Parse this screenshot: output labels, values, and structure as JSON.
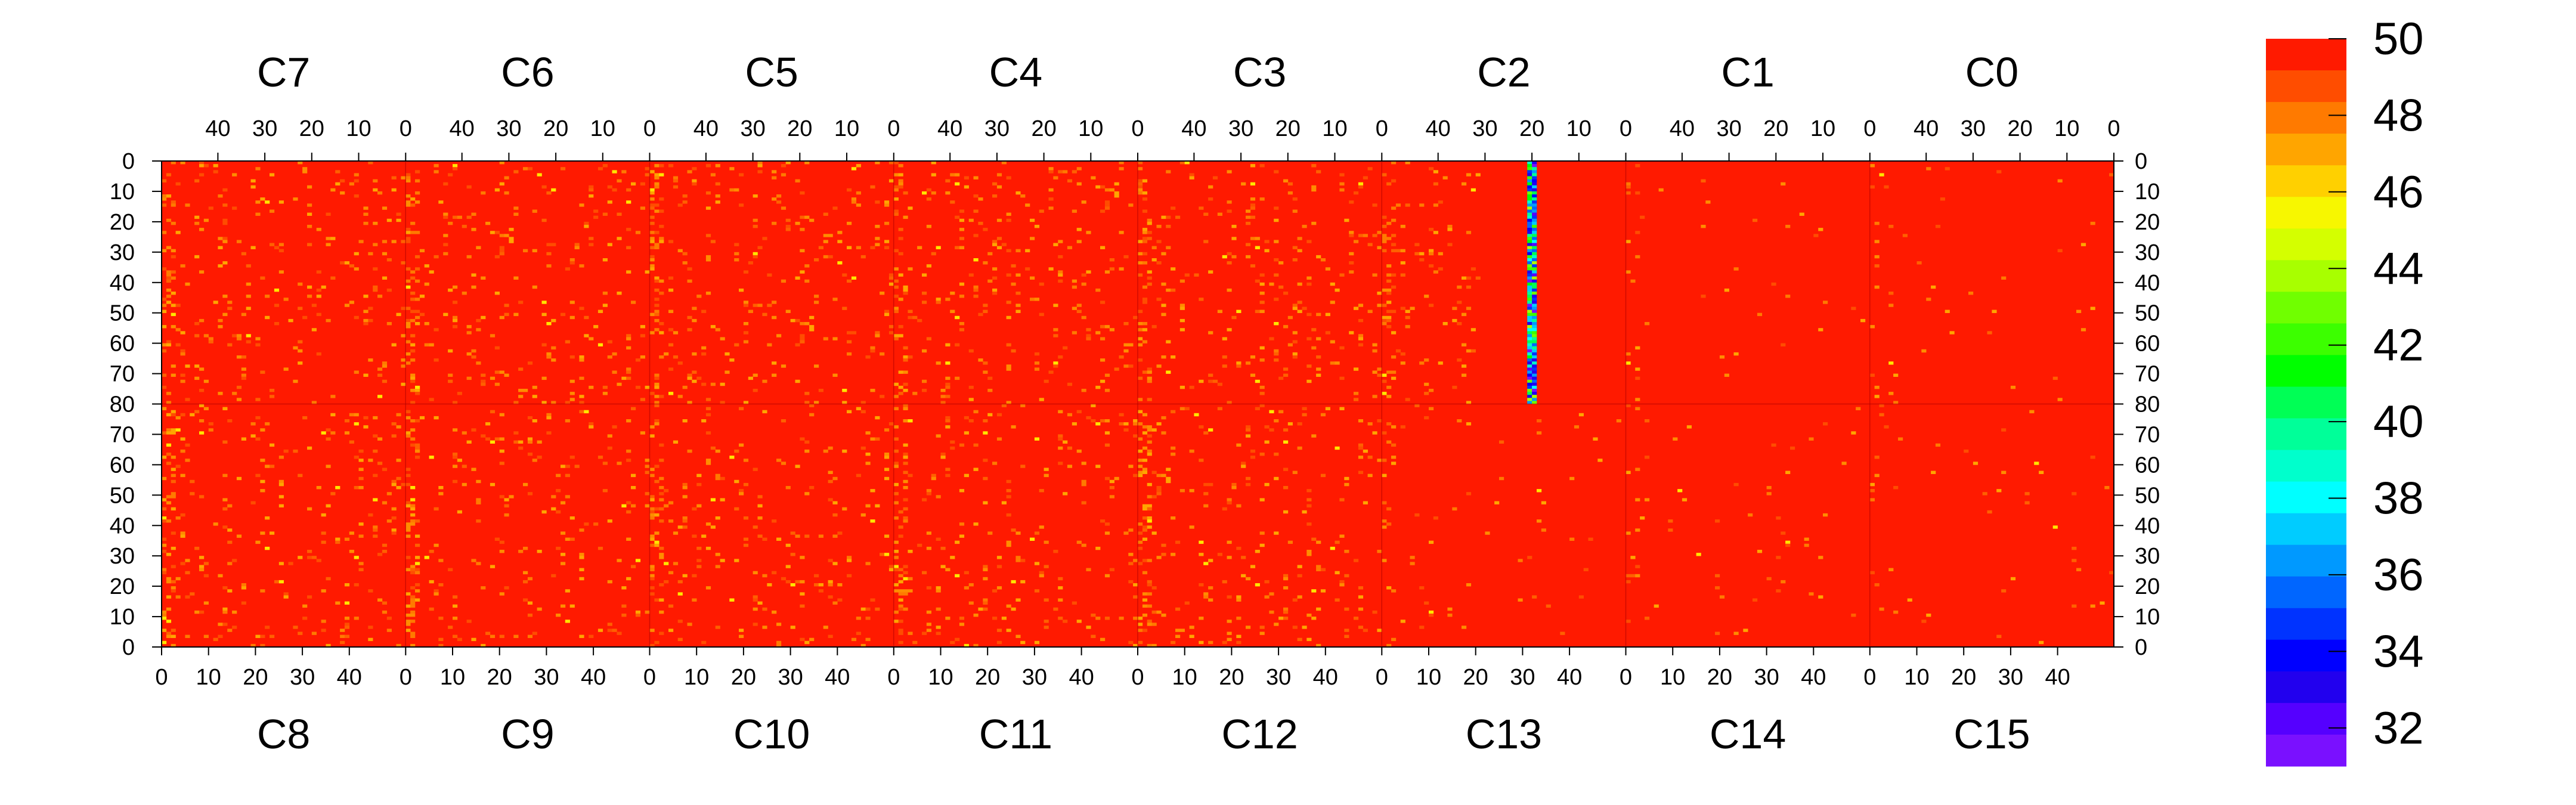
{
  "chart_data": {
    "type": "heatmap",
    "title": "",
    "top_chips": [
      "C7",
      "C6",
      "C5",
      "C4",
      "C3",
      "C2",
      "C1",
      "C0"
    ],
    "bottom_chips": [
      "C8",
      "C9",
      "C10",
      "C11",
      "C12",
      "C13",
      "C14",
      "C15"
    ],
    "chip_columns": 52,
    "rows_per_half": 80,
    "top_axis_ticks": [
      "40",
      "30",
      "20",
      "10",
      "0"
    ],
    "top_axis_tick_values": [
      40,
      30,
      20,
      10,
      0
    ],
    "bottom_axis_ticks": [
      "0",
      "10",
      "20",
      "30",
      "40"
    ],
    "bottom_axis_tick_values": [
      0,
      10,
      20,
      30,
      40
    ],
    "upper_row_ticks": [
      "0",
      "10",
      "20",
      "30",
      "40",
      "50",
      "60",
      "70",
      "80"
    ],
    "upper_row_tick_values": [
      0,
      10,
      20,
      30,
      40,
      50,
      60,
      70,
      80
    ],
    "lower_row_ticks": [
      "70",
      "60",
      "50",
      "40",
      "30",
      "20",
      "10",
      "0"
    ],
    "lower_row_tick_values": [
      70,
      60,
      50,
      40,
      30,
      20,
      10,
      0
    ],
    "z_range": [
      31,
      50
    ],
    "colorbar_ticks": [
      "50",
      "48",
      "46",
      "44",
      "42",
      "40",
      "38",
      "36",
      "34",
      "32"
    ],
    "colorbar_tick_values": [
      50,
      48,
      46,
      44,
      42,
      40,
      38,
      36,
      34,
      32
    ],
    "colorbar_palette": [
      "#ff1a00",
      "#ff4d00",
      "#ff7a00",
      "#ffa500",
      "#ffd000",
      "#f7f700",
      "#d4ff00",
      "#a8ff00",
      "#70ff00",
      "#3cff00",
      "#00ff00",
      "#00ff55",
      "#00ff99",
      "#00ffcc",
      "#00ffff",
      "#00ccff",
      "#0099ff",
      "#0066ff",
      "#0033ff",
      "#0000ff",
      "#2200ee",
      "#5500ff",
      "#7a10ff"
    ],
    "dominant_value": 50,
    "feature": {
      "description_note": "",
      "chip": "C2",
      "column": 20,
      "row_range": [
        0,
        80
      ],
      "value_range": [
        31,
        44
      ]
    }
  }
}
